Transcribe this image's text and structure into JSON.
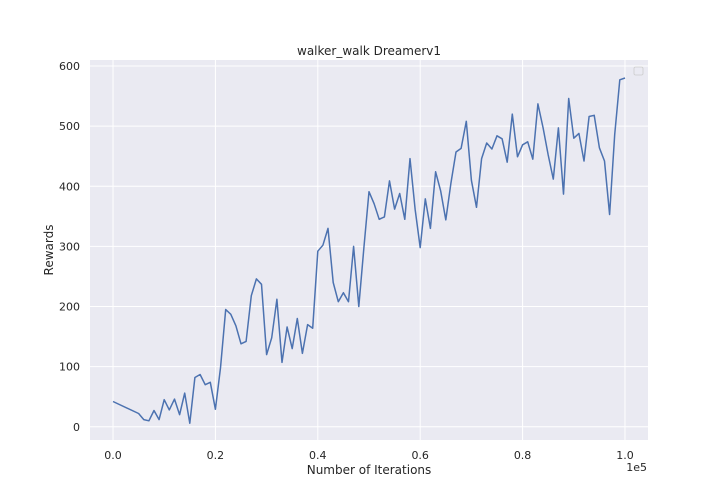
{
  "chart_data": {
    "type": "line",
    "title": "walker_walk Dreamerv1",
    "xlabel": "Number of Iterations",
    "ylabel": "Rewards",
    "x_scale_label": "1e5",
    "xlim": [
      -0.045,
      1.045
    ],
    "ylim": [
      -22,
      610
    ],
    "xticks": [
      0.0,
      0.2,
      0.4,
      0.6,
      0.8,
      1.0
    ],
    "xtick_labels": [
      "0.0",
      "0.2",
      "0.4",
      "0.6",
      "0.8",
      "1.0"
    ],
    "yticks": [
      0,
      100,
      200,
      300,
      400,
      500,
      600
    ],
    "ytick_labels": [
      "0",
      "100",
      "200",
      "300",
      "400",
      "500",
      "600"
    ],
    "grid": true,
    "legend": "top-right, empty",
    "colors": {
      "background": "#eaeaf2",
      "grid": "#ffffff",
      "line": "#4c72b0"
    },
    "series": [
      {
        "x": [
          0.0,
          0.05,
          0.06,
          0.07,
          0.08,
          0.09,
          0.1,
          0.11,
          0.12,
          0.13,
          0.14,
          0.15,
          0.16,
          0.17,
          0.18,
          0.19,
          0.2,
          0.21,
          0.22,
          0.23,
          0.24,
          0.25,
          0.26,
          0.27,
          0.28,
          0.29,
          0.3,
          0.31,
          0.32,
          0.33,
          0.34,
          0.35,
          0.36,
          0.37,
          0.38,
          0.39,
          0.4,
          0.41,
          0.42,
          0.43,
          0.44,
          0.45,
          0.46,
          0.47,
          0.48,
          0.49,
          0.5,
          0.51,
          0.52,
          0.53,
          0.54,
          0.55,
          0.56,
          0.57,
          0.58,
          0.59,
          0.6,
          0.61,
          0.62,
          0.63,
          0.64,
          0.65,
          0.66,
          0.67,
          0.68,
          0.69,
          0.7,
          0.71,
          0.72,
          0.73,
          0.74,
          0.75,
          0.76,
          0.77,
          0.78,
          0.79,
          0.8,
          0.81,
          0.82,
          0.83,
          0.84,
          0.85,
          0.86,
          0.87,
          0.88,
          0.89,
          0.9,
          0.91,
          0.92,
          0.93,
          0.94,
          0.95,
          0.96,
          0.97,
          0.98,
          0.99,
          1.0
        ],
        "y": [
          42,
          22,
          12,
          10,
          27,
          12,
          45,
          28,
          46,
          20,
          56,
          6,
          82,
          87,
          70,
          74,
          29,
          98,
          195,
          187,
          168,
          138,
          142,
          218,
          246,
          237,
          120,
          148,
          212,
          107,
          166,
          130,
          180,
          122,
          170,
          164,
          292,
          302,
          330,
          240,
          208,
          223,
          208,
          300,
          200,
          298,
          391,
          371,
          345,
          349,
          409,
          362,
          388,
          345,
          446,
          362,
          298,
          379,
          330,
          424,
          392,
          344,
          405,
          457,
          463,
          508,
          410,
          365,
          446,
          472,
          462,
          484,
          479,
          440,
          520,
          449,
          469,
          474,
          445,
          537,
          497,
          452,
          412,
          497,
          387,
          546,
          480,
          488,
          442,
          516,
          518,
          464,
          442,
          353,
          486,
          577,
          580
        ]
      }
    ]
  }
}
